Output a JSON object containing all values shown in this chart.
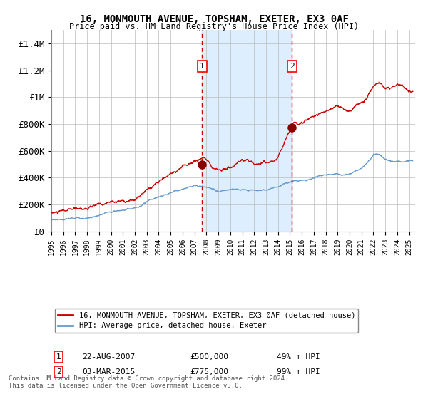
{
  "title1": "16, MONMOUTH AVENUE, TOPSHAM, EXETER, EX3 0AF",
  "title2": "Price paid vs. HM Land Registry's House Price Index (HPI)",
  "legend1": "16, MONMOUTH AVENUE, TOPSHAM, EXETER, EX3 0AF (detached house)",
  "legend2": "HPI: Average price, detached house, Exeter",
  "annotation1_label": "1",
  "annotation1_date": "22-AUG-2007",
  "annotation1_price": "£500,000",
  "annotation1_hpi": "49% ↑ HPI",
  "annotation2_label": "2",
  "annotation2_date": "03-MAR-2015",
  "annotation2_price": "£775,000",
  "annotation2_hpi": "99% ↑ HPI",
  "footer": "Contains HM Land Registry data © Crown copyright and database right 2024.\nThis data is licensed under the Open Government Licence v3.0.",
  "red_color": "#cc0000",
  "blue_color": "#6699cc",
  "marker_color": "#880000",
  "shade_color": "#ddeeff",
  "dashed_color": "#cc0000",
  "ylim": [
    0,
    1500000
  ],
  "yticks": [
    0,
    200000,
    400000,
    600000,
    800000,
    1000000,
    1200000,
    1400000
  ],
  "ytick_labels": [
    "£0",
    "£200K",
    "£400K",
    "£600K",
    "£800K",
    "£1M",
    "£1.2M",
    "£1.4M"
  ],
  "sale1_year": 2007.64,
  "sale1_value": 500000,
  "sale2_year": 2015.17,
  "sale2_value": 775000,
  "xmin": 1995,
  "xmax": 2025.5,
  "key_years_r": [
    1995,
    1997,
    1999,
    2002,
    2004,
    2006,
    2007.64,
    2008.5,
    2009,
    2010,
    2011,
    2012,
    2013,
    2014,
    2015.17,
    2016,
    2017,
    2018,
    2019,
    2020,
    2021,
    2022,
    2022.5,
    2023,
    2024,
    2024.5,
    2025.3
  ],
  "key_vals_r": [
    140000,
    145000,
    165000,
    215000,
    310000,
    430000,
    500000,
    460000,
    430000,
    455000,
    465000,
    450000,
    460000,
    500000,
    775000,
    820000,
    880000,
    940000,
    970000,
    940000,
    1000000,
    1140000,
    1150000,
    1100000,
    1120000,
    1090000,
    1050000
  ],
  "key_years_b": [
    1995,
    1997,
    1999,
    2002,
    2004,
    2006,
    2007,
    2008,
    2009,
    2010,
    2011,
    2012,
    2013,
    2014,
    2015.17,
    2016,
    2017,
    2018,
    2019,
    2020,
    2021,
    2022,
    2022.5,
    2023,
    2024,
    2024.5,
    2025.3
  ],
  "key_vals_b": [
    90000,
    100000,
    120000,
    175000,
    235000,
    300000,
    335000,
    320000,
    295000,
    300000,
    300000,
    295000,
    305000,
    335000,
    390000,
    400000,
    420000,
    440000,
    440000,
    430000,
    470000,
    575000,
    580000,
    550000,
    540000,
    530000,
    525000
  ],
  "noise_seed_r": 10,
  "noise_seed_b": 20,
  "noise_scale_r": 3000,
  "noise_scale_b": 1500
}
